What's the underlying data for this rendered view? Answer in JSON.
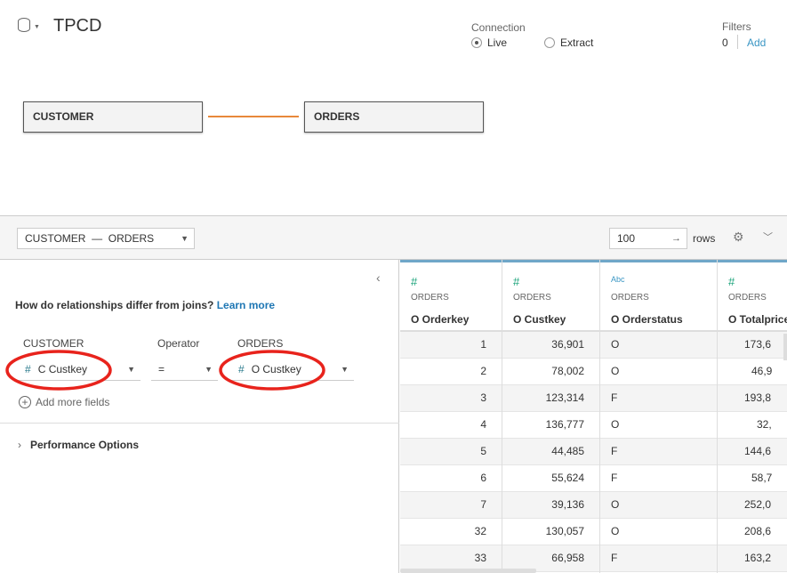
{
  "header": {
    "title": "TPCD",
    "datasource_icon": "cylinder-icon",
    "connection": {
      "label": "Connection",
      "options": [
        {
          "label": "Live",
          "selected": true
        },
        {
          "label": "Extract",
          "selected": false
        }
      ]
    },
    "filters": {
      "label": "Filters",
      "count": "0",
      "add_label": "Add"
    }
  },
  "canvas": {
    "tables": [
      "CUSTOMER",
      "ORDERS"
    ],
    "link_color": "#e8883a"
  },
  "toolbar": {
    "relationship_select": "CUSTOMER  —  ORDERS",
    "rows_value": "100",
    "rows_label": "rows"
  },
  "relationship": {
    "question": "How do relationships differ from joins?",
    "learn_more": "Learn more",
    "left_header": "CUSTOMER",
    "operator_header": "Operator",
    "right_header": "ORDERS",
    "left_field": "C Custkey",
    "operator": "=",
    "right_field": "O Custkey",
    "add_more": "Add more fields",
    "performance": "Performance Options",
    "highlight_color": "#e8231c"
  },
  "grid": {
    "columns": [
      {
        "type_icon": "#",
        "source": "ORDERS",
        "name": "O Orderkey",
        "align": "r",
        "values": [
          "1",
          "2",
          "3",
          "4",
          "5",
          "6",
          "7",
          "32",
          "33"
        ]
      },
      {
        "type_icon": "#",
        "source": "ORDERS",
        "name": "O Custkey",
        "align": "r",
        "values": [
          "36,901",
          "78,002",
          "123,314",
          "136,777",
          "44,485",
          "55,624",
          "39,136",
          "130,057",
          "66,958"
        ]
      },
      {
        "type_icon": "Abc",
        "source": "ORDERS",
        "name": "O Orderstatus",
        "align": "l",
        "values": [
          "O",
          "O",
          "F",
          "O",
          "F",
          "F",
          "O",
          "O",
          "F"
        ]
      },
      {
        "type_icon": "#",
        "source": "ORDERS",
        "name": "O Totalprice",
        "align": "r",
        "values": [
          "173,6",
          "46,9",
          "193,8",
          "32,",
          "144,6",
          "58,7",
          "252,0",
          "208,6",
          "163,2"
        ]
      }
    ]
  }
}
